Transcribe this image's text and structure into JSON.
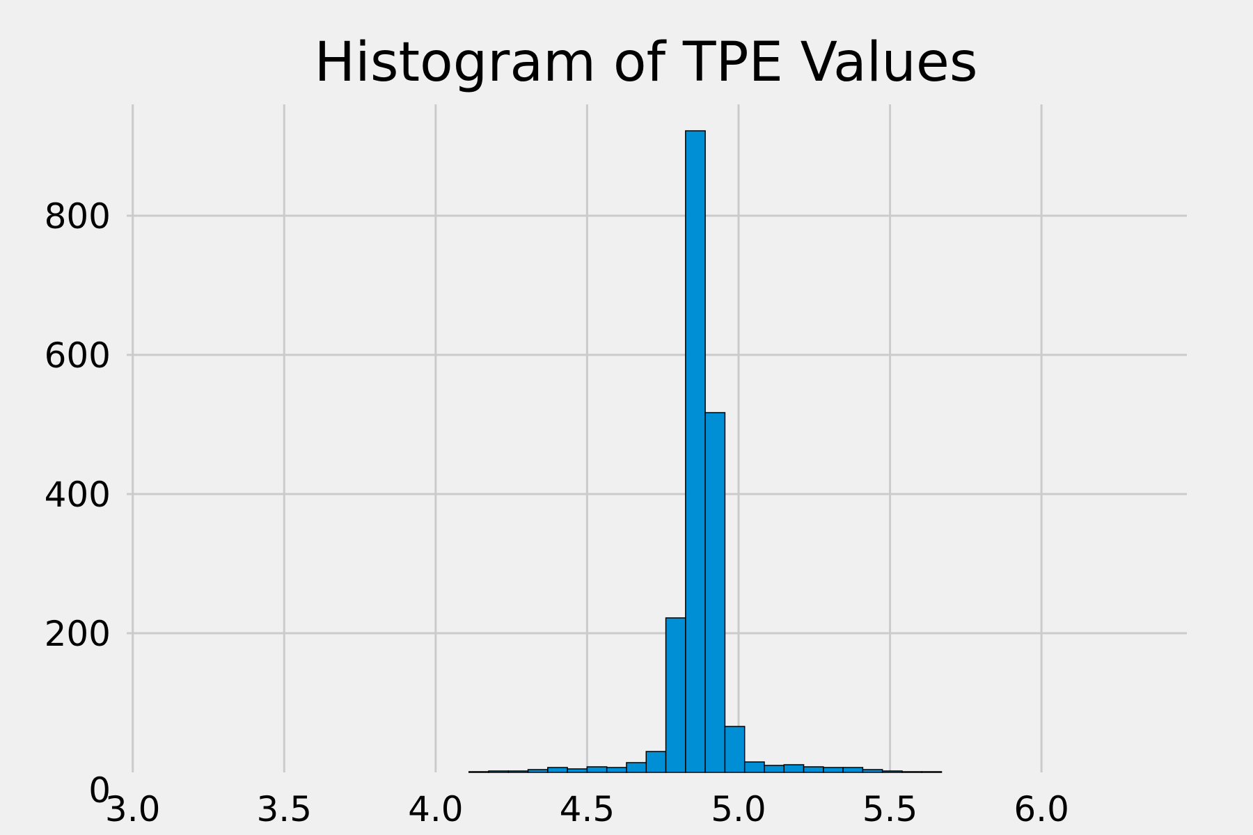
{
  "chart_data": {
    "type": "bar",
    "title": "Histogram of TPE Values",
    "xlabel": "",
    "ylabel": "",
    "xlim": [
      2.98,
      6.48
    ],
    "ylim": [
      0,
      960
    ],
    "xticks": [
      "3.0",
      "3.5",
      "4.0",
      "4.5",
      "5.0",
      "5.5",
      "6.0"
    ],
    "xtick_values": [
      3.0,
      3.5,
      4.0,
      4.5,
      5.0,
      5.5,
      6.0
    ],
    "yticks": [
      "0",
      "200",
      "400",
      "600",
      "800"
    ],
    "ytick_values": [
      0,
      200,
      400,
      600,
      800
    ],
    "grid": true,
    "bar_color": "#008fd5",
    "bar_edge_color": "#000000",
    "background_color": "#f0f0f0",
    "grid_color": "#cbcbcb",
    "bins": [
      {
        "x0": 4.11,
        "x1": 4.175,
        "count": 1
      },
      {
        "x0": 4.175,
        "x1": 4.24,
        "count": 2
      },
      {
        "x0": 4.24,
        "x1": 4.305,
        "count": 2
      },
      {
        "x0": 4.305,
        "x1": 4.37,
        "count": 4
      },
      {
        "x0": 4.37,
        "x1": 4.435,
        "count": 7
      },
      {
        "x0": 4.435,
        "x1": 4.5,
        "count": 5
      },
      {
        "x0": 4.5,
        "x1": 4.565,
        "count": 8
      },
      {
        "x0": 4.565,
        "x1": 4.63,
        "count": 7
      },
      {
        "x0": 4.63,
        "x1": 4.695,
        "count": 14
      },
      {
        "x0": 4.695,
        "x1": 4.76,
        "count": 30
      },
      {
        "x0": 4.76,
        "x1": 4.825,
        "count": 222
      },
      {
        "x0": 4.825,
        "x1": 4.89,
        "count": 922
      },
      {
        "x0": 4.89,
        "x1": 4.955,
        "count": 517
      },
      {
        "x0": 4.955,
        "x1": 5.02,
        "count": 66
      },
      {
        "x0": 5.02,
        "x1": 5.085,
        "count": 15
      },
      {
        "x0": 5.085,
        "x1": 5.15,
        "count": 10
      },
      {
        "x0": 5.15,
        "x1": 5.215,
        "count": 11
      },
      {
        "x0": 5.215,
        "x1": 5.28,
        "count": 8
      },
      {
        "x0": 5.28,
        "x1": 5.345,
        "count": 7
      },
      {
        "x0": 5.345,
        "x1": 5.41,
        "count": 7
      },
      {
        "x0": 5.41,
        "x1": 5.475,
        "count": 4
      },
      {
        "x0": 5.475,
        "x1": 5.54,
        "count": 2
      },
      {
        "x0": 5.54,
        "x1": 5.605,
        "count": 1
      },
      {
        "x0": 5.605,
        "x1": 5.67,
        "count": 1
      }
    ]
  }
}
